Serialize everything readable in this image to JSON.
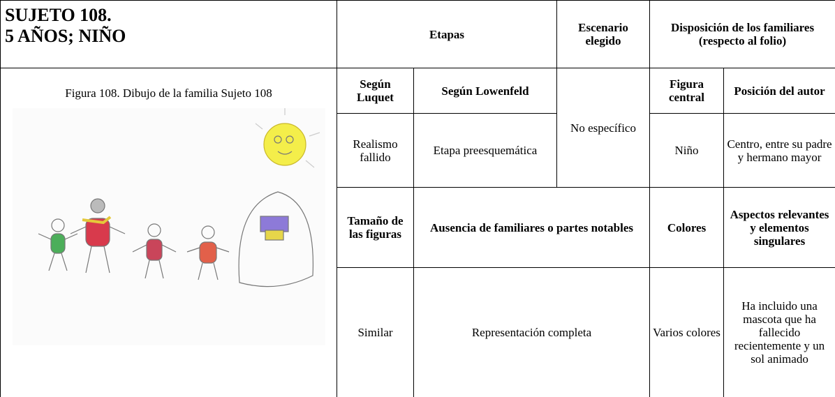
{
  "header": {
    "subject": [
      "SUJETO 108.",
      "5 AÑOS; NIÑO"
    ],
    "etapas": "Etapas",
    "escenario": "Escenario elegido",
    "disposicion": [
      "Disposición de los familiares",
      "(respecto al folio)"
    ]
  },
  "figure": {
    "caption": "Figura 108. Dibujo de la familia Sujeto 108"
  },
  "table": {
    "rows": [
      [
        "Según Luquet",
        "Según Lowenfeld",
        "Figura central",
        "Posición del autor"
      ],
      [
        "Realismo fallido",
        "Etapa preesquemática",
        "No específico",
        "Niño",
        "Centro, entre su padre y hermano mayor"
      ],
      [
        "Tamaño de las figuras",
        "Ausencia de familiares o partes notables",
        "Colores",
        "Aspectos relevantes y elementos singulares"
      ],
      [
        "Similar",
        "Representación completa",
        "Varios colores",
        "Ha incluido una mascota que ha fallecido recientemente y un sol animado"
      ]
    ]
  }
}
